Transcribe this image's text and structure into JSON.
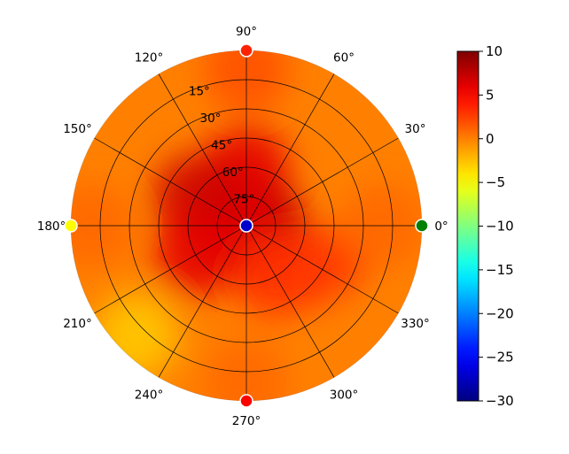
{
  "chart_data": {
    "type": "heatmap",
    "projection": "polar",
    "title": "",
    "angle_unit": "°",
    "angle_ticks": [
      0,
      30,
      60,
      90,
      120,
      150,
      180,
      210,
      240,
      270,
      300,
      330
    ],
    "radial_ticks": [
      15,
      30,
      45,
      60,
      75
    ],
    "radial_max": 90,
    "grid": true,
    "colormap": "jet",
    "colorbar": {
      "position": "right",
      "vmin": -30,
      "vmax": 10,
      "ticks": [
        10,
        5,
        0,
        -5,
        -10,
        -15,
        -20,
        -25,
        -30
      ]
    },
    "field_samples": [
      {
        "az": 0,
        "el": 0,
        "value": 0
      },
      {
        "az": 0,
        "el": 80,
        "value": 7
      },
      {
        "az": 90,
        "el": 80,
        "value": 8
      },
      {
        "az": 180,
        "el": 80,
        "value": 8
      },
      {
        "az": 270,
        "el": 80,
        "value": 6
      },
      {
        "az": 90,
        "el": 60,
        "value": 6
      },
      {
        "az": 150,
        "el": 60,
        "value": 7
      },
      {
        "az": 210,
        "el": 60,
        "value": 6
      },
      {
        "az": 300,
        "el": 60,
        "value": 3
      },
      {
        "az": 330,
        "el": 45,
        "value": 3
      },
      {
        "az": 0,
        "el": 20,
        "value": 1
      },
      {
        "az": 90,
        "el": 10,
        "value": 2
      },
      {
        "az": 180,
        "el": 10,
        "value": 1
      },
      {
        "az": 225,
        "el": 10,
        "value": -3
      },
      {
        "az": 270,
        "el": 10,
        "value": 1
      },
      {
        "az": 315,
        "el": 10,
        "value": 0
      }
    ],
    "markers": [
      {
        "az": 0,
        "el": 0,
        "color": "#008000"
      },
      {
        "az": 90,
        "el": 0,
        "color": "#ff2200"
      },
      {
        "az": 180,
        "el": 0,
        "color": "#ffff00"
      },
      {
        "az": 270,
        "el": 0,
        "color": "#ff0000"
      },
      {
        "az": 0,
        "el": 90,
        "color": "#0000cc"
      }
    ]
  }
}
